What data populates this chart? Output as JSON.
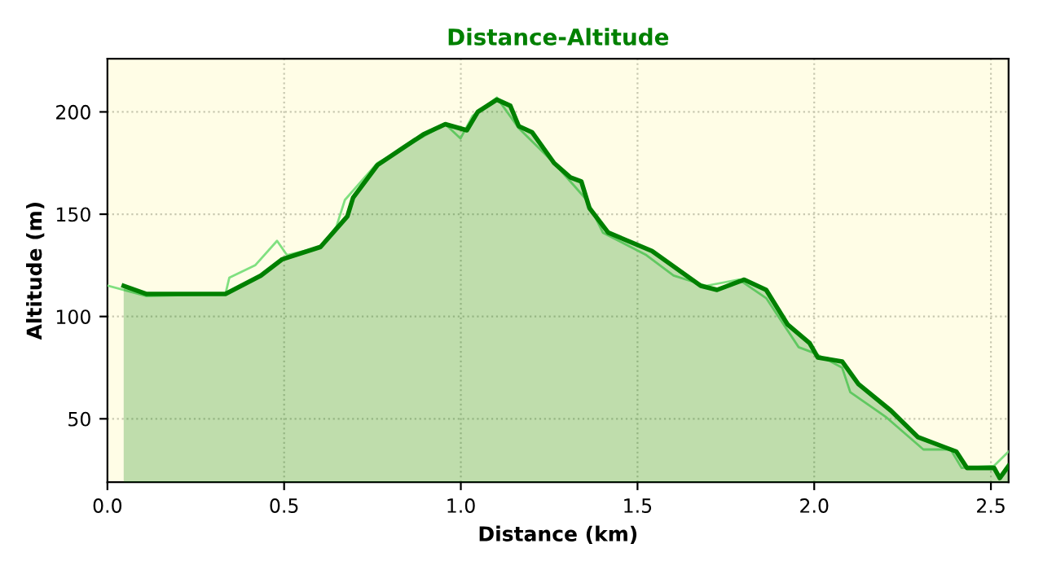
{
  "chart_data": {
    "type": "area",
    "title": "Distance-Altitude",
    "xlabel": "Distance (km)",
    "ylabel": "Altitude (m)",
    "xlim": [
      0,
      2.55
    ],
    "ylim": [
      19,
      226
    ],
    "xticks": [
      {
        "value": 0,
        "label": "0.0"
      },
      0.5,
      {
        "value": 1,
        "label": "1.0"
      },
      1.5,
      {
        "value": 2,
        "label": "2.0"
      },
      2.5
    ],
    "yticks": [
      50,
      100,
      150,
      200
    ],
    "grid": true,
    "series": [
      {
        "color": "#008000",
        "x": [
          0.046,
          0.111,
          0.334,
          0.434,
          0.495,
          0.603,
          0.679,
          0.695,
          0.764,
          0.833,
          0.894,
          0.956,
          1.017,
          1.048,
          1.102,
          1.14,
          1.164,
          1.202,
          1.264,
          1.31,
          1.341,
          1.364,
          1.417,
          1.541,
          1.679,
          1.725,
          1.802,
          1.864,
          1.925,
          1.987,
          2.01,
          2.079,
          2.125,
          2.217,
          2.294,
          2.371,
          2.402,
          2.432,
          2.509,
          2.525,
          2.55
        ],
        "values": [
          115,
          111,
          111,
          120,
          128,
          134,
          149,
          158,
          174,
          182,
          189,
          194,
          191,
          200,
          206,
          203,
          193,
          190,
          175,
          168,
          166,
          153,
          141,
          132,
          115,
          113,
          118,
          113,
          96,
          87,
          80,
          78,
          67,
          54,
          41,
          36,
          34,
          26,
          26,
          21,
          27
        ]
      },
      {
        "type": "line",
        "color": "#80e080",
        "x": [
          0.003,
          0.111,
          0.334,
          0.345,
          0.418,
          0.48,
          0.508,
          0.603,
          0.648,
          0.672,
          0.764,
          0.894,
          0.956,
          0.999,
          1.033,
          1.102,
          1.164,
          1.264,
          1.356,
          1.402,
          1.525,
          1.602,
          1.694,
          1.787,
          1.864,
          1.956,
          2.002,
          2.079,
          2.102,
          2.202,
          2.309,
          2.386,
          2.417,
          2.509,
          2.55
        ],
        "values": [
          115,
          110,
          111,
          119,
          125,
          137,
          130,
          134,
          144,
          157,
          175,
          188,
          194,
          187,
          198,
          207,
          192,
          175,
          157,
          141,
          130,
          120,
          115,
          118,
          109,
          85,
          82,
          75,
          63,
          51,
          35,
          35,
          26,
          27,
          34
        ]
      }
    ]
  }
}
